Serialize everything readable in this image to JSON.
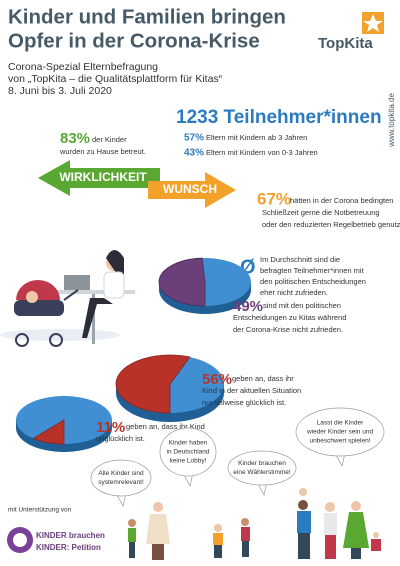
{
  "header": {
    "title_lines": [
      "Kinder und Familien bringen",
      "Opfer in der Corona-Krise"
    ],
    "subtitle_lines": [
      "Corona-Spezial Elternbefragung",
      "von „TopKita – die Qualitätsplattform für Kitas“",
      "8. Juni bis 3. Juli 2020"
    ],
    "logo": "TopKita",
    "website": "www.topkita.de"
  },
  "participants": {
    "title": "1233 Teilnehmer*innen",
    "groups": [
      {
        "percent": "57%",
        "text": "Eltern mit Kindern ab 3 Jahren"
      },
      {
        "percent": "43%",
        "text": "Eltern mit Kindern von 0-3 Jahren"
      }
    ]
  },
  "care": {
    "percent": "83%",
    "lines": [
      "der Kinder",
      "wurden zu Hause betreut."
    ]
  },
  "arrows": {
    "reality": "WIRKLICHKEIT",
    "wish": "WUNSCH"
  },
  "wish": {
    "percent": "67%",
    "lines": [
      "hätten in der Corona bedingten",
      "Schließzeit gerne die Notbetreuung",
      "oder den reduzierten Regelbetrieb genutzt."
    ]
  },
  "average": {
    "symbol": "Ø",
    "lines": [
      "Im Durchschnitt sind die",
      "befragten Teilnehmer*innen mit",
      "den politischen Entscheidungen",
      "eher nicht zufrieden."
    ]
  },
  "pies": [
    {
      "value": 49,
      "label": "49%",
      "lines": [
        "sind mit den politischen",
        "Entscheidungen zu Kitas während",
        "der Corona-Krise nicht zufrieden."
      ]
    },
    {
      "value": 56,
      "label": "56%",
      "lines": [
        "geben an, dass ihr",
        "Kind in der aktuellen Situation",
        "nur teilweise glücklich ist."
      ]
    },
    {
      "value": 11,
      "label": "11%",
      "lines": [
        "geben an, dass ihr Kind",
        "unglücklich ist."
      ]
    }
  ],
  "bubbles": [
    {
      "lines": [
        "Alle Kinder sind",
        "systemrelevant!"
      ]
    },
    {
      "lines": [
        "Kinder haben",
        "in Deutschland",
        "keine Lobby!"
      ]
    },
    {
      "lines": [
        "Kinder brauchen",
        "eine Wählerstimme!"
      ]
    },
    {
      "lines": [
        "Lasst die Kinder",
        "wieder Kinder sein und",
        "unbeschwert spielen!"
      ]
    }
  ],
  "support": {
    "intro": "mit Unterstützung von",
    "logo_lines": [
      "KINDER brauchen",
      "KINDER: Petition"
    ]
  }
}
